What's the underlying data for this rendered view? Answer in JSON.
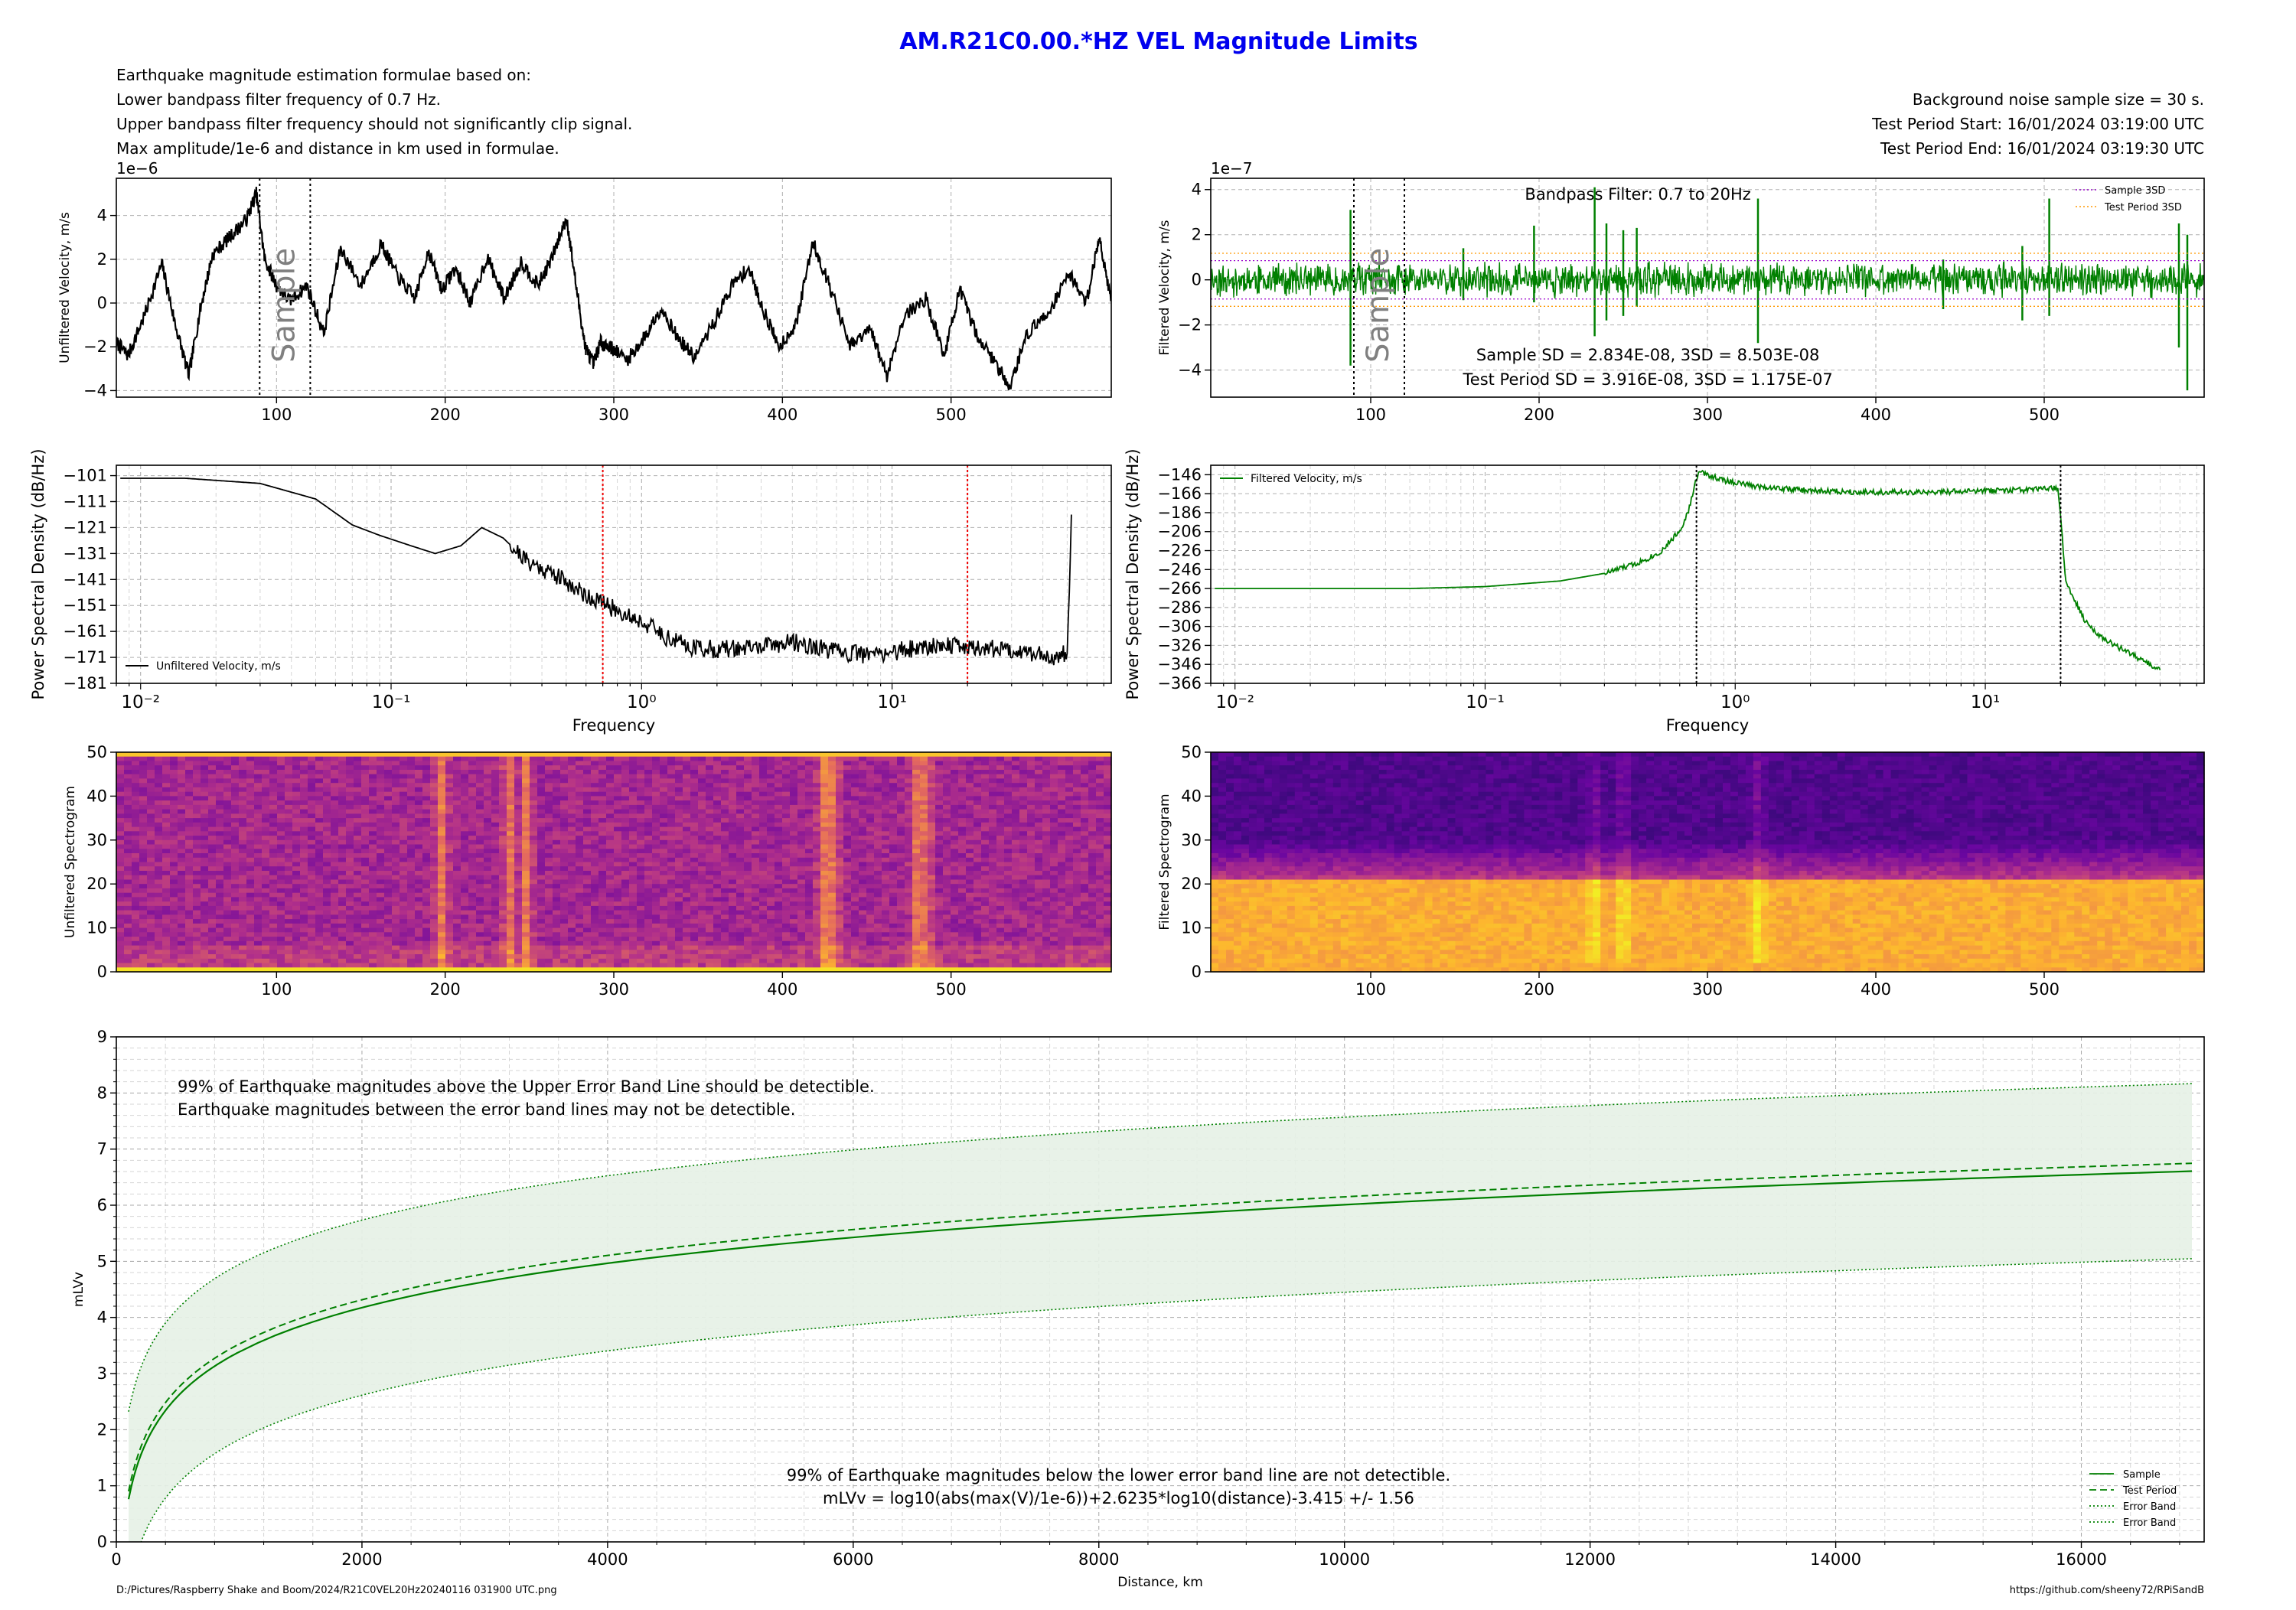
{
  "title": "AM.R21C0.00.*HZ VEL Magnitude Limits",
  "header_left": [
    "Earthquake magnitude estimation formulae based on:",
    "Lower bandpass filter frequency of 0.7 Hz.",
    "Upper bandpass filter frequency should not significantly clip signal.",
    "Max amplitude/1e-6 and distance in km used in formulae."
  ],
  "header_right": [
    "Background noise sample size = 30 s.",
    "Test Period Start:  16/01/2024 03:19:00 UTC",
    "Test Period End:  16/01/2024 03:19:30 UTC"
  ],
  "footer_left": "D:/Pictures/Raspberry Shake and Boom/2024/R21C0VEL20Hz20240116 031900 UTC.png",
  "footer_right": "https://github.com/sheeny72/RPiSandB",
  "colors": {
    "title": "#0000ee",
    "filtered": "#008000",
    "unfiltered": "#000000",
    "marker_red": "#ee0000",
    "band_fill": "#e5f1e5"
  },
  "sample_label": "Sample",
  "chart_data": [
    {
      "id": "unfiltered-velocity",
      "type": "line",
      "ylabel": "Unfiltered Velocity, m/s",
      "y_multiplier": "1e−6",
      "xlim": [
        5,
        595
      ],
      "ylim": [
        -4.3,
        5.7
      ],
      "xticks": [
        100,
        200,
        300,
        400,
        500
      ],
      "xtick_labels": [
        "100",
        "200",
        "300",
        "400",
        "500"
      ],
      "yticks": [
        -4,
        -2,
        0,
        2,
        4
      ],
      "ytick_labels": [
        "−4",
        "−2",
        "0",
        "2",
        "4"
      ],
      "sample_window": [
        90,
        120
      ],
      "grid": true,
      "series_color": "#000000",
      "series": [
        {
          "x": [
            5,
            12,
            22,
            32,
            40,
            48,
            55,
            62,
            72,
            82,
            88,
            93,
            100,
            108,
            118,
            128,
            138,
            150,
            162,
            172,
            182,
            190,
            198,
            206,
            215,
            225,
            235,
            245,
            255,
            263,
            272,
            278,
            283,
            288,
            292,
            298,
            308,
            318,
            328,
            338,
            348,
            360,
            370,
            380,
            388,
            398,
            408,
            418,
            428,
            440,
            452,
            462,
            472,
            485,
            496,
            505,
            515,
            525,
            535,
            545,
            558,
            570,
            580,
            588,
            595
          ],
          "y": [
            -1.8,
            -2.4,
            -0.5,
            1.8,
            -1.0,
            -3.3,
            -0.2,
            2.2,
            3.0,
            3.8,
            5.0,
            2.0,
            0.8,
            0.1,
            0.8,
            -1.4,
            2.5,
            0.8,
            2.7,
            1.2,
            0.2,
            2.4,
            0.6,
            1.6,
            0.0,
            2.1,
            0.2,
            1.9,
            0.8,
            2.0,
            3.9,
            0.6,
            -2.0,
            -2.8,
            -1.8,
            -2.0,
            -2.6,
            -1.6,
            -0.2,
            -1.6,
            -2.5,
            -0.8,
            0.8,
            1.6,
            -0.2,
            -2.0,
            -1.0,
            2.8,
            0.8,
            -2.0,
            -1.2,
            -3.3,
            -0.6,
            0.2,
            -2.4,
            0.6,
            -1.4,
            -2.6,
            -3.8,
            -1.4,
            -0.4,
            1.4,
            0.0,
            3.0,
            0.1
          ]
        }
      ]
    },
    {
      "id": "filtered-velocity",
      "type": "line",
      "ylabel": "Filtered Velocity, m/s",
      "y_multiplier": "1e−7",
      "xlim": [
        5,
        595
      ],
      "ylim": [
        -5.2,
        4.5
      ],
      "xticks": [
        100,
        200,
        300,
        400,
        500
      ],
      "xtick_labels": [
        "100",
        "200",
        "300",
        "400",
        "500"
      ],
      "yticks": [
        -4,
        -2,
        0,
        2,
        4
      ],
      "ytick_labels": [
        "−4",
        "−2",
        "0",
        "2",
        "4"
      ],
      "sample_window": [
        90,
        120
      ],
      "grid": true,
      "filter_label": "Bandpass Filter: 0.7 to 20Hz",
      "stats": [
        "Sample SD = 2.834E-08,  3SD = 8.503E-08",
        "Test Period SD = 3.916E-08,  3SD = 1.175E-07"
      ],
      "noise_amplitude": 0.6,
      "sample_3sd": 0.85,
      "test_3sd": 1.175,
      "spikes": [
        {
          "x": 88,
          "y": [
            -3.8,
            3.1
          ]
        },
        {
          "x": 155,
          "y": [
            -0.9,
            1.4
          ]
        },
        {
          "x": 197,
          "y": [
            -1.0,
            2.4
          ]
        },
        {
          "x": 233,
          "y": [
            -2.5,
            4.1
          ]
        },
        {
          "x": 240,
          "y": [
            -1.8,
            2.5
          ]
        },
        {
          "x": 250,
          "y": [
            -1.6,
            2.2
          ]
        },
        {
          "x": 258,
          "y": [
            -1.2,
            2.3
          ]
        },
        {
          "x": 330,
          "y": [
            -2.8,
            3.6
          ]
        },
        {
          "x": 440,
          "y": [
            -1.3,
            0.9
          ]
        },
        {
          "x": 487,
          "y": [
            -1.8,
            1.5
          ]
        },
        {
          "x": 503,
          "y": [
            -1.6,
            3.6
          ]
        },
        {
          "x": 580,
          "y": [
            -3.0,
            2.5
          ]
        },
        {
          "x": 585,
          "y": [
            -4.9,
            2.0
          ]
        }
      ],
      "legend": [
        "Sample 3SD",
        "Test Period 3SD"
      ],
      "legend_colors": [
        "#9900cc",
        "#ff9900"
      ],
      "series_color": "#008000"
    },
    {
      "id": "unfiltered-psd",
      "type": "line",
      "xscale": "log",
      "xlabel": "Frequency",
      "ylabel": "Power Spectral Density (dB/Hz)",
      "xlim": [
        0.008,
        75
      ],
      "ylim": [
        -181,
        -97
      ],
      "xticks": [
        0.01,
        0.1,
        1,
        10
      ],
      "yticks": [
        -101,
        -111,
        -121,
        -131,
        -141,
        -151,
        -161,
        -171,
        -181
      ],
      "ytick_labels": [
        "−101",
        "−111",
        "−121",
        "−131",
        "−141",
        "−151",
        "−161",
        "−171",
        "−181"
      ],
      "vlines": [
        0.7,
        20
      ],
      "vline_color": "#ee0000",
      "legend": "Unfiltered Velocity, m/s",
      "series_color": "#000000",
      "series": [
        {
          "x": [
            0.0083,
            0.015,
            0.03,
            0.05,
            0.07,
            0.09,
            0.12,
            0.15,
            0.19,
            0.23,
            0.28,
            0.35,
            0.45,
            0.6,
            0.8,
            1.0,
            1.3,
            1.6,
            2.0,
            3.0,
            4.0,
            6.0,
            8.0,
            10.0,
            15.0,
            20.0,
            30.0,
            45.0,
            50.0,
            52.0
          ],
          "y": [
            -102,
            -102,
            -104,
            -110,
            -120,
            -124,
            -128,
            -131,
            -128,
            -121,
            -125,
            -134,
            -139,
            -147,
            -153,
            -157,
            -164,
            -167,
            -168,
            -167,
            -165,
            -169,
            -170,
            -169,
            -166,
            -167,
            -168,
            -171,
            -169,
            -116
          ]
        }
      ]
    },
    {
      "id": "filtered-psd",
      "type": "line",
      "xscale": "log",
      "xlabel": "Frequency",
      "ylabel": "Power Spectral Density (dB/Hz)",
      "xlim": [
        0.008,
        75
      ],
      "ylim": [
        -366,
        -136
      ],
      "xticks": [
        0.01,
        0.1,
        1,
        10
      ],
      "yticks": [
        -146,
        -166,
        -186,
        -206,
        -226,
        -246,
        -266,
        -286,
        -306,
        -326,
        -346,
        -366
      ],
      "ytick_labels": [
        "−146",
        "−166",
        "−186",
        "−206",
        "−226",
        "−246",
        "−266",
        "−286",
        "−306",
        "−326",
        "−346",
        "−366"
      ],
      "vlines": [
        0.7,
        20
      ],
      "vline_color": "#000000",
      "legend": "Filtered Velocity, m/s",
      "series_color": "#008000",
      "series": [
        {
          "x": [
            0.0083,
            0.05,
            0.1,
            0.2,
            0.3,
            0.4,
            0.5,
            0.6,
            0.65,
            0.7,
            0.72,
            0.9,
            1.2,
            2.0,
            5.0,
            10.0,
            15.0,
            19.5,
            20.0,
            21.0,
            25.0,
            30.0,
            40.0,
            50.0
          ],
          "y": [
            -266,
            -266,
            -264,
            -258,
            -250,
            -240,
            -228,
            -205,
            -185,
            -150,
            -143,
            -152,
            -158,
            -163,
            -165,
            -163,
            -162,
            -160,
            -190,
            -260,
            -300,
            -320,
            -338,
            -352
          ]
        }
      ]
    },
    {
      "id": "unfiltered-spectrogram",
      "type": "heatmap",
      "ylabel": "Unfiltered Spectrogram",
      "xlim": [
        5,
        595
      ],
      "ylim": [
        0,
        50
      ],
      "xticks": [
        100,
        200,
        300,
        400,
        500
      ],
      "xtick_labels": [
        "100",
        "200",
        "300",
        "400",
        "500"
      ],
      "yticks": [
        0,
        10,
        20,
        30,
        40,
        50
      ],
      "ytick_labels": [
        "0",
        "10",
        "20",
        "30",
        "40",
        "50"
      ],
      "bright_columns": [
        198,
        238,
        248,
        425,
        430,
        480,
        485
      ],
      "colormap": [
        "#2a0a6e",
        "#6a06a0",
        "#b2308a",
        "#e56b5d",
        "#fdb42f",
        "#f0f921"
      ]
    },
    {
      "id": "filtered-spectrogram",
      "type": "heatmap",
      "ylabel": "Filtered Spectrogram",
      "xlim": [
        5,
        595
      ],
      "ylim": [
        0,
        50
      ],
      "xticks": [
        100,
        200,
        300,
        400,
        500
      ],
      "xtick_labels": [
        "100",
        "200",
        "300",
        "400",
        "500"
      ],
      "yticks": [
        0,
        10,
        20,
        30,
        40,
        50
      ],
      "ytick_labels": [
        "0",
        "10",
        "20",
        "30",
        "40",
        "50"
      ],
      "passband": [
        0.7,
        20
      ],
      "bright_columns": [
        233,
        250,
        330
      ],
      "colormap": [
        "#2a0a6e",
        "#6a06a0",
        "#b2308a",
        "#e56b5d",
        "#fdb42f",
        "#f0f921"
      ]
    },
    {
      "id": "magnitude-limits",
      "type": "line",
      "xlabel": "Distance, km",
      "ylabel": "mLVv",
      "xlim": [
        0,
        17000
      ],
      "ylim": [
        0,
        9
      ],
      "xticks": [
        0,
        2000,
        4000,
        6000,
        8000,
        10000,
        12000,
        14000,
        16000
      ],
      "xtick_labels": [
        "0",
        "2000",
        "4000",
        "6000",
        "8000",
        "10000",
        "12000",
        "14000",
        "16000"
      ],
      "yticks": [
        0,
        1,
        2,
        3,
        4,
        5,
        6,
        7,
        8,
        9
      ],
      "ytick_labels": [
        "0",
        "1",
        "2",
        "3",
        "4",
        "5",
        "6",
        "7",
        "8",
        "9"
      ],
      "grid": true,
      "notes_top": [
        "99% of Earthquake magnitudes above the Upper Error Band Line should be detectible.",
        "Earthquake magnitudes between the error band lines may not be detectible."
      ],
      "notes_bottom": [
        "99% of Earthquake magnitudes below the lower error band line are not detectible.",
        "mLVv = log10(abs(max(V)/1e-6))+2.6235*log10(distance)-3.415 +/- 1.56"
      ],
      "formula": {
        "slope": 2.6235,
        "offset": -3.415,
        "error": 1.56
      },
      "sample_max_velocity": 8.503e-08,
      "test_max_velocity": 1.175e-07,
      "distance_range": [
        100,
        17000
      ],
      "legend": [
        "Sample",
        "Test Period",
        "Error Band",
        "Error Band"
      ],
      "series_color": "#008000"
    }
  ]
}
